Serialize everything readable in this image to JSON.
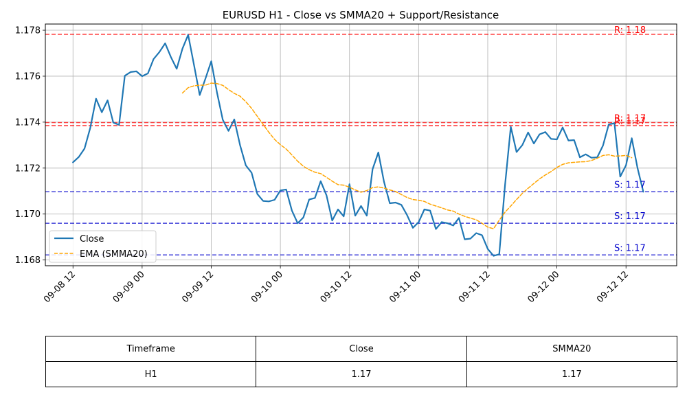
{
  "chart_data": {
    "type": "line",
    "title": "EURUSD H1 - Close vs SMMA20 + Support/Resistance",
    "xlabel": "",
    "ylabel": "",
    "xlim": [
      -4.8,
      104.8
    ],
    "ylim": [
      1.16775,
      1.17827
    ],
    "x_ticks": [
      {
        "t": 0,
        "label": "09-08 12"
      },
      {
        "t": 12,
        "label": "09-09 00"
      },
      {
        "t": 24,
        "label": "09-09 12"
      },
      {
        "t": 36,
        "label": "09-10 00"
      },
      {
        "t": 48,
        "label": "09-10 12"
      },
      {
        "t": 60,
        "label": "09-11 00"
      },
      {
        "t": 72,
        "label": "09-11 12"
      },
      {
        "t": 84,
        "label": "09-12 00"
      },
      {
        "t": 96,
        "label": "09-12 12"
      }
    ],
    "y_ticks": [
      "1.168",
      "1.170",
      "1.172",
      "1.174",
      "1.176",
      "1.178"
    ],
    "grid": true,
    "legend": {
      "position": "lower-left",
      "entries": [
        "Close",
        "EMA (SMMA20)"
      ]
    },
    "series": [
      {
        "name": "Close",
        "color": "#1f77b4",
        "style": "solid",
        "start_t": 0,
        "values": [
          1.17225,
          1.17248,
          1.17285,
          1.17375,
          1.17502,
          1.17443,
          1.17495,
          1.17398,
          1.17388,
          1.17602,
          1.17618,
          1.17621,
          1.176,
          1.17612,
          1.17675,
          1.17705,
          1.17743,
          1.17683,
          1.17632,
          1.1772,
          1.1778,
          1.1765,
          1.17518,
          1.1759,
          1.17665,
          1.17528,
          1.1741,
          1.17362,
          1.17412,
          1.173,
          1.17212,
          1.1718,
          1.17087,
          1.17057,
          1.17055,
          1.17062,
          1.17103,
          1.17107,
          1.17015,
          1.1696,
          1.16985,
          1.17063,
          1.1707,
          1.17143,
          1.17082,
          1.16972,
          1.1702,
          1.1699,
          1.1713,
          1.16993,
          1.17035,
          1.16993,
          1.17195,
          1.17268,
          1.1714,
          1.17047,
          1.1705,
          1.1704,
          1.16995,
          1.1694,
          1.16965,
          1.1702,
          1.17015,
          1.16935,
          1.16965,
          1.1696,
          1.1695,
          1.16983,
          1.1689,
          1.16893,
          1.16917,
          1.16908,
          1.16848,
          1.16818,
          1.16825,
          1.17125,
          1.1738,
          1.1727,
          1.173,
          1.17355,
          1.17307,
          1.17347,
          1.17357,
          1.17327,
          1.17325,
          1.17377,
          1.1732,
          1.17322,
          1.17247,
          1.1726,
          1.17245,
          1.17247,
          1.17298,
          1.1739,
          1.17395,
          1.17163,
          1.17212,
          1.1733,
          1.172,
          1.17097
        ]
      },
      {
        "name": "EMA (SMMA20)",
        "color": "#ffa500",
        "style": "dashed",
        "start_t": 19,
        "values": [
          1.17527,
          1.1755,
          1.17558,
          1.17561,
          1.17561,
          1.1757,
          1.17568,
          1.1756,
          1.17542,
          1.17525,
          1.17513,
          1.17489,
          1.1746,
          1.17425,
          1.1739,
          1.17356,
          1.17325,
          1.17302,
          1.17283,
          1.17257,
          1.1723,
          1.17208,
          1.17193,
          1.17182,
          1.17176,
          1.1716,
          1.17143,
          1.17128,
          1.17126,
          1.17117,
          1.17105,
          1.17095,
          1.17102,
          1.17115,
          1.17118,
          1.17113,
          1.17105,
          1.17098,
          1.17085,
          1.17072,
          1.17063,
          1.1706,
          1.17055,
          1.17043,
          1.17035,
          1.17027,
          1.17018,
          1.17013,
          1.17,
          1.1699,
          1.16982,
          1.16975,
          1.1696,
          1.16943,
          1.16936,
          1.16973,
          1.17008,
          1.17035,
          1.17063,
          1.1709,
          1.17112,
          1.17133,
          1.17153,
          1.1717,
          1.17185,
          1.17203,
          1.17216,
          1.17223,
          1.17225,
          1.17227,
          1.17228,
          1.17233,
          1.17243,
          1.17255,
          1.17258,
          1.17252,
          1.17253,
          1.17255,
          1.17245
        ]
      }
    ],
    "hlines": [
      {
        "y": 1.17782,
        "kind": "resistance",
        "label": "R: 1.18",
        "color": "#ff0000"
      },
      {
        "y": 1.17398,
        "kind": "resistance",
        "label": "R: 1.17",
        "color": "#ff0000"
      },
      {
        "y": 1.17385,
        "kind": "resistance",
        "label": "R: 1.17",
        "color": "#ff0000"
      },
      {
        "y": 1.17097,
        "kind": "support",
        "label": "S: 1.17",
        "color": "#0000cc"
      },
      {
        "y": 1.1696,
        "kind": "support",
        "label": "S: 1.17",
        "color": "#0000cc"
      },
      {
        "y": 1.16822,
        "kind": "support",
        "label": "S: 1.17",
        "color": "#0000cc"
      }
    ]
  },
  "table": {
    "headers": [
      "Timeframe",
      "Close",
      "SMMA20"
    ],
    "row": [
      "H1",
      "1.17",
      "1.17"
    ]
  }
}
